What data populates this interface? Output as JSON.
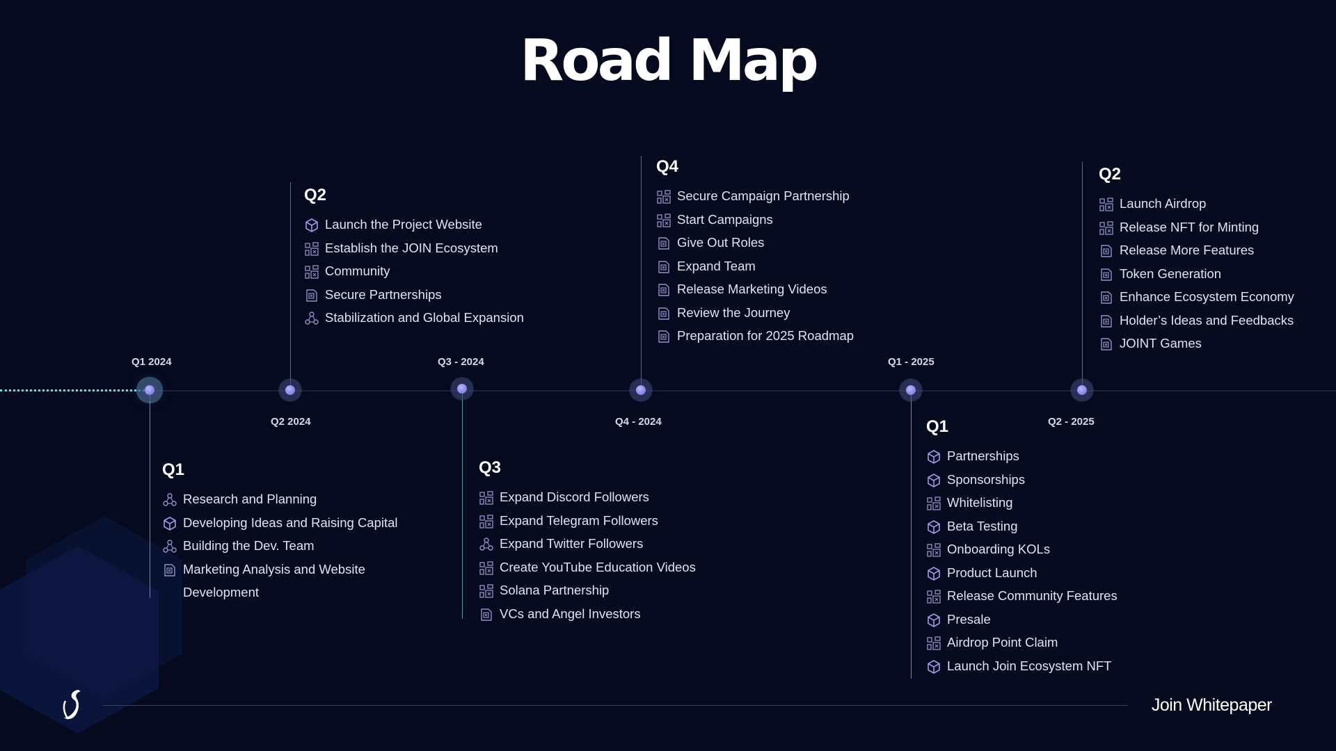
{
  "title": "Road Map",
  "footer": {
    "label": "Join Whitepaper",
    "logo_icon": "join-logo-icon"
  },
  "timeline_labels": {
    "q1_2024": "Q1 2024",
    "q2_2024": "Q2 2024",
    "q3_2024": "Q3 - 2024",
    "q4_2024": "Q4 - 2024",
    "q1_2025": "Q1 - 2025",
    "q2_2025": "Q2 - 2025"
  },
  "phases": {
    "q1_2024": {
      "heading": "Q1",
      "items": [
        {
          "label": "Research and Planning",
          "icon": "network-icon"
        },
        {
          "label": "Developing Ideas and Raising Capital",
          "icon": "cube-icon"
        },
        {
          "label": "Building the Dev. Team",
          "icon": "network-icon"
        },
        {
          "label": "Marketing Analysis and Website Development",
          "icon": "document-icon"
        }
      ]
    },
    "q2_2024": {
      "heading": "Q2",
      "items": [
        {
          "label": "Launch  the Project Website",
          "icon": "cube-icon"
        },
        {
          "label": "Establish the JOIN Ecosystem",
          "icon": "grid-icon"
        },
        {
          "label": "Community",
          "icon": "grid-icon"
        },
        {
          "label": "Secure Partnerships",
          "icon": "document-icon"
        },
        {
          "label": "Stabilization and Global Expansion",
          "icon": "network-icon"
        }
      ]
    },
    "q3_2024": {
      "heading": "Q3",
      "items": [
        {
          "label": "Expand  Discord Followers",
          "icon": "grid-icon"
        },
        {
          "label": "Expand Telegram Followers",
          "icon": "grid-icon"
        },
        {
          "label": "Expand Twitter Followers",
          "icon": "network-icon"
        },
        {
          "label": "Create YouTube Education Videos",
          "icon": "grid-icon"
        },
        {
          "label": "Solana Partnership",
          "icon": "grid-icon"
        },
        {
          "label": "VCs and Angel Investors",
          "icon": "document-icon"
        }
      ]
    },
    "q4_2024": {
      "heading": "Q4",
      "items": [
        {
          "label": "Secure Campaign Partnership",
          "icon": "grid-icon"
        },
        {
          "label": "Start Campaigns",
          "icon": "grid-icon"
        },
        {
          "label": "Give Out Roles",
          "icon": "document-icon"
        },
        {
          "label": "Expand Team",
          "icon": "document-icon"
        },
        {
          "label": "Release Marketing Videos",
          "icon": "document-icon"
        },
        {
          "label": "Review the Journey",
          "icon": "document-icon"
        },
        {
          "label": "Preparation for 2025 Roadmap",
          "icon": "document-icon"
        }
      ]
    },
    "q1_2025": {
      "heading": "Q1",
      "items": [
        {
          "label": "Partnerships",
          "icon": "cube-icon"
        },
        {
          "label": "Sponsorships",
          "icon": "cube-icon"
        },
        {
          "label": "Whitelisting",
          "icon": "grid-icon"
        },
        {
          "label": "Beta Testing",
          "icon": "cube-icon"
        },
        {
          "label": "Onboarding KOLs",
          "icon": "grid-icon"
        },
        {
          "label": "Product Launch",
          "icon": "cube-icon"
        },
        {
          "label": "Release Community Features",
          "icon": "grid-icon"
        },
        {
          "label": "Presale",
          "icon": "cube-icon"
        },
        {
          "label": "Airdrop Point Claim",
          "icon": "grid-icon"
        },
        {
          "label": "Launch Join Ecosystem NFT",
          "icon": "cube-icon"
        }
      ]
    },
    "q2_2025": {
      "heading": "Q2",
      "items": [
        {
          "label": "Launch Airdrop",
          "icon": "grid-icon"
        },
        {
          "label": "Release NFT for Minting",
          "icon": "grid-icon"
        },
        {
          "label": "Release More Features",
          "icon": "document-icon"
        },
        {
          "label": "Token Generation",
          "icon": "document-icon"
        },
        {
          "label": "Enhance Ecosystem Economy",
          "icon": "document-icon"
        },
        {
          "label": "Holder’s Ideas and Feedbacks",
          "icon": "document-icon"
        },
        {
          "label": "JOINT Games",
          "icon": "document-icon"
        }
      ]
    }
  }
}
